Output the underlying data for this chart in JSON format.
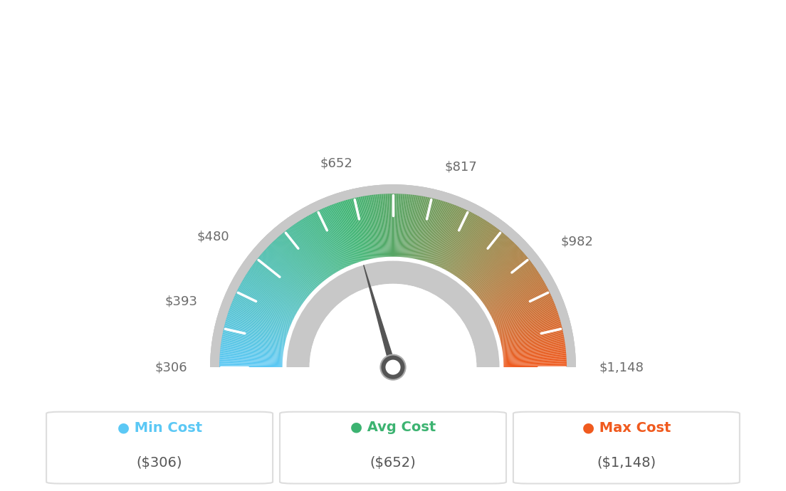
{
  "min_val": 306,
  "max_val": 1148,
  "avg_val": 652,
  "label_values": [
    306,
    393,
    480,
    652,
    817,
    982,
    1148
  ],
  "labels": [
    "$306",
    "$393",
    "$480",
    "$652",
    "$817",
    "$982",
    "$1,148"
  ],
  "min_cost_label": "Min Cost",
  "avg_cost_label": "Avg Cost",
  "max_cost_label": "Max Cost",
  "min_cost_val": "($306)",
  "avg_cost_val": "($652)",
  "max_cost_val": "($1,148)",
  "min_color": "#5bc8f5",
  "avg_color": "#3cb371",
  "max_color": "#f05a1e",
  "bg_color": "#ffffff",
  "tick_color": "#ffffff",
  "label_color": "#6b6b6b",
  "needle_color": "#555555",
  "border_color": "#c8c8c8"
}
